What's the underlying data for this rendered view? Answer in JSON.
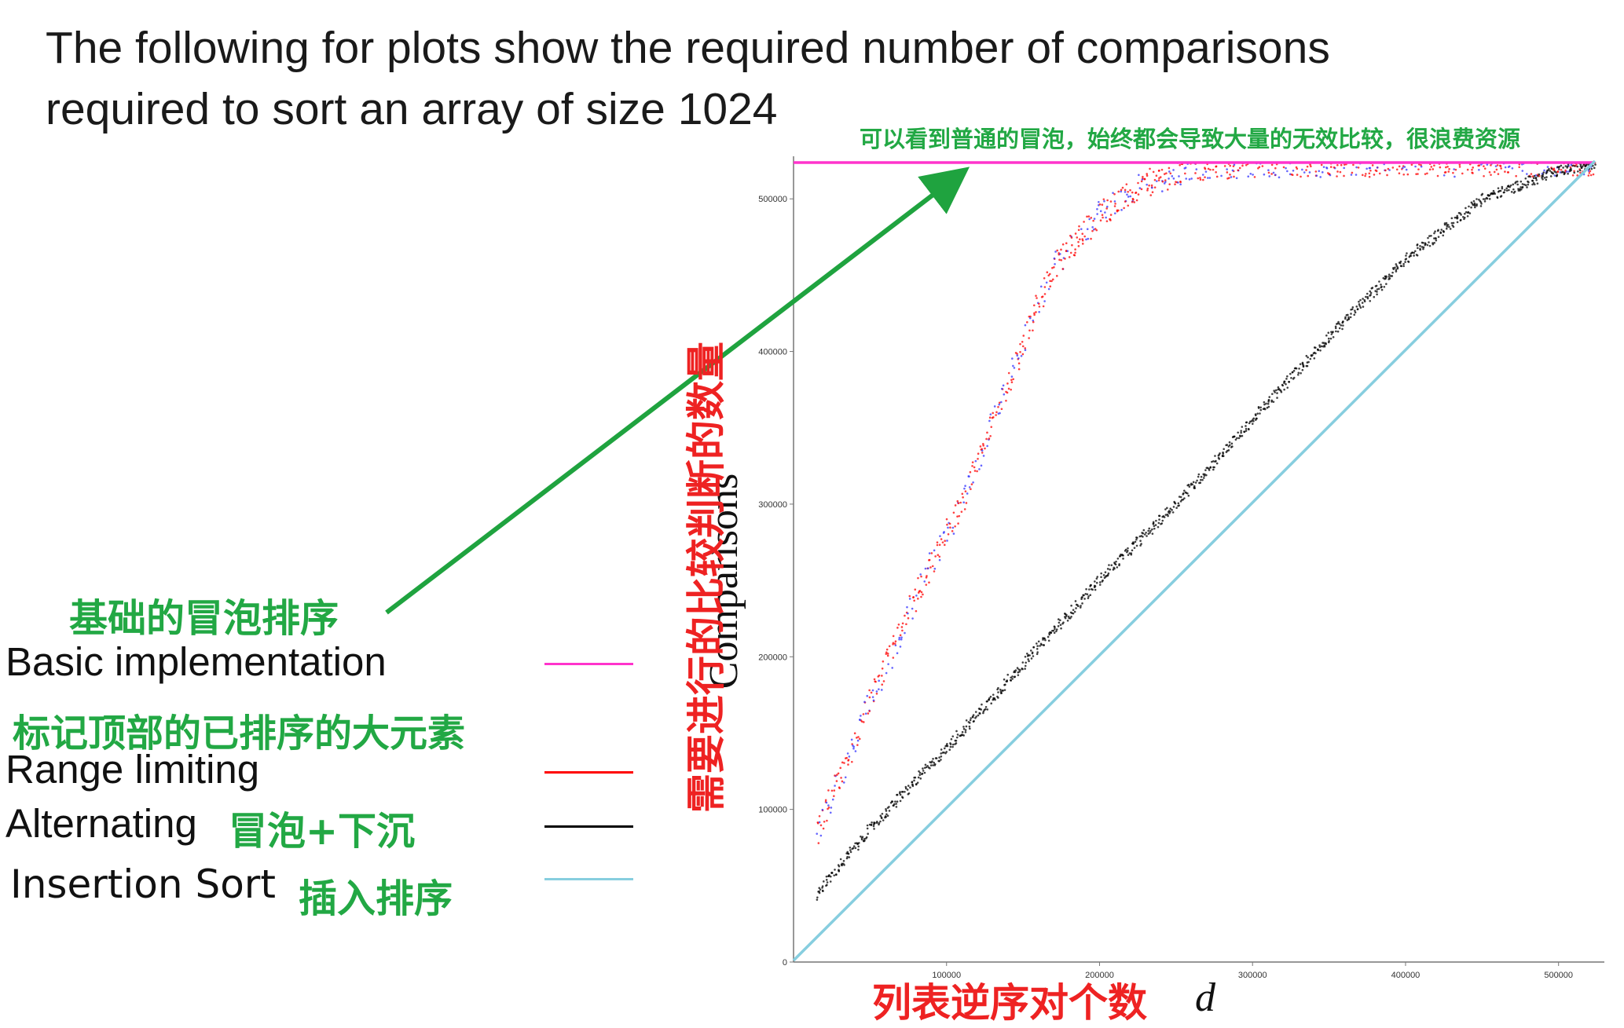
{
  "heading": {
    "line1": "The following for plots show the required number of comparisons",
    "line2": "required to sort an array of size 1024"
  },
  "annotations": {
    "top_note": "可以看到普通的冒泡，始终都会导致大量的无效比较，很浪费资源",
    "basic_cn": "基础的冒泡排序",
    "range_cn": "标记顶部的已排序的大元素",
    "alt_cn": "冒泡+下沉",
    "insertion_cn": "插入排序",
    "y_cn": "需要进行的比较判断的数量",
    "x_cn": "列表逆序对个数"
  },
  "legend": [
    {
      "key": "basic",
      "label": "Basic implementation",
      "color": "#ff33cc"
    },
    {
      "key": "range",
      "label": "Range limiting",
      "color": "#ff0000"
    },
    {
      "key": "alt",
      "label": "Alternating",
      "color": "#000000"
    },
    {
      "key": "ins",
      "label": "Insertion Sort",
      "color": "#87cedf"
    }
  ],
  "colors": {
    "annotation_green": "#22a844",
    "annotation_red": "#ee2222",
    "arrow": "#1fa33f",
    "range_dots_secondary": "#3333ff"
  },
  "chart_data": {
    "type": "scatter",
    "title": "",
    "xlabel": "d",
    "ylabel": "Comparisons",
    "xlim": [
      0,
      523776
    ],
    "ylim": [
      0,
      523776
    ],
    "x_ticks": [
      100000,
      200000,
      300000,
      400000,
      500000
    ],
    "x_tick_labels": [
      "100000",
      "200000",
      "300000",
      "400000",
      "500000"
    ],
    "y_ticks": [
      0,
      100000,
      200000,
      300000,
      400000,
      500000
    ],
    "y_tick_labels": [
      "0",
      "100000",
      "200000",
      "300000",
      "400000",
      "500000"
    ],
    "grid": false,
    "legend_position": "left",
    "series": [
      {
        "name": "Basic implementation",
        "kind": "line",
        "x": [
          0,
          523776
        ],
        "y": [
          523776,
          523776
        ]
      },
      {
        "name": "Range limiting",
        "kind": "scatter",
        "x": [
          0,
          20000,
          50000,
          80000,
          110000,
          140000,
          170000,
          200000,
          230000,
          260000,
          300000,
          523776
        ],
        "y": [
          40000,
          95000,
          170000,
          240000,
          300000,
          380000,
          455000,
          490000,
          510000,
          520000,
          523000,
          523776
        ]
      },
      {
        "name": "Alternating",
        "kind": "scatter",
        "x": [
          0,
          50000,
          100000,
          150000,
          200000,
          250000,
          300000,
          350000,
          400000,
          450000,
          500000,
          523776
        ],
        "y": [
          26000,
          87000,
          140000,
          195000,
          250000,
          300000,
          355000,
          410000,
          460000,
          500000,
          518000,
          523776
        ]
      },
      {
        "name": "Insertion Sort",
        "kind": "line",
        "x": [
          0,
          523776
        ],
        "y": [
          1023,
          524799
        ]
      }
    ]
  }
}
